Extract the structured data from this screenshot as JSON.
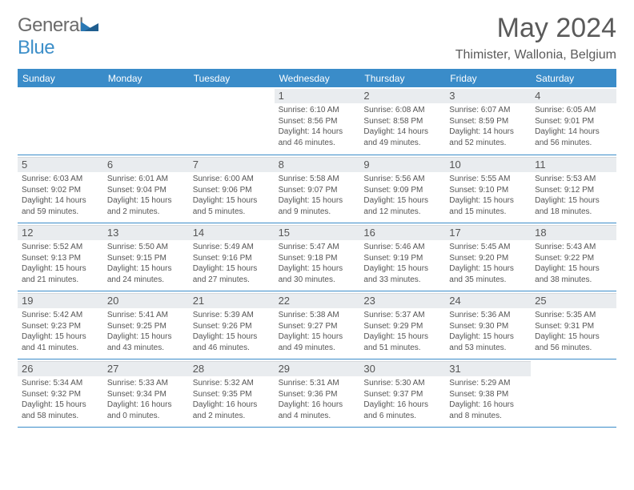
{
  "logo": {
    "part1": "General",
    "part2": "Blue"
  },
  "title": "May 2024",
  "subtitle": "Thimister, Wallonia, Belgium",
  "weekdays": [
    "Sunday",
    "Monday",
    "Tuesday",
    "Wednesday",
    "Thursday",
    "Friday",
    "Saturday"
  ],
  "colors": {
    "brand_blue": "#3a8cc9",
    "header_gray": "#e9ecef",
    "text": "#555555",
    "bg": "#ffffff"
  },
  "weeks": [
    [
      {
        "n": "",
        "rise": "",
        "set": "",
        "dl": ""
      },
      {
        "n": "",
        "rise": "",
        "set": "",
        "dl": ""
      },
      {
        "n": "",
        "rise": "",
        "set": "",
        "dl": ""
      },
      {
        "n": "1",
        "rise": "Sunrise: 6:10 AM",
        "set": "Sunset: 8:56 PM",
        "dl": "Daylight: 14 hours and 46 minutes."
      },
      {
        "n": "2",
        "rise": "Sunrise: 6:08 AM",
        "set": "Sunset: 8:58 PM",
        "dl": "Daylight: 14 hours and 49 minutes."
      },
      {
        "n": "3",
        "rise": "Sunrise: 6:07 AM",
        "set": "Sunset: 8:59 PM",
        "dl": "Daylight: 14 hours and 52 minutes."
      },
      {
        "n": "4",
        "rise": "Sunrise: 6:05 AM",
        "set": "Sunset: 9:01 PM",
        "dl": "Daylight: 14 hours and 56 minutes."
      }
    ],
    [
      {
        "n": "5",
        "rise": "Sunrise: 6:03 AM",
        "set": "Sunset: 9:02 PM",
        "dl": "Daylight: 14 hours and 59 minutes."
      },
      {
        "n": "6",
        "rise": "Sunrise: 6:01 AM",
        "set": "Sunset: 9:04 PM",
        "dl": "Daylight: 15 hours and 2 minutes."
      },
      {
        "n": "7",
        "rise": "Sunrise: 6:00 AM",
        "set": "Sunset: 9:06 PM",
        "dl": "Daylight: 15 hours and 5 minutes."
      },
      {
        "n": "8",
        "rise": "Sunrise: 5:58 AM",
        "set": "Sunset: 9:07 PM",
        "dl": "Daylight: 15 hours and 9 minutes."
      },
      {
        "n": "9",
        "rise": "Sunrise: 5:56 AM",
        "set": "Sunset: 9:09 PM",
        "dl": "Daylight: 15 hours and 12 minutes."
      },
      {
        "n": "10",
        "rise": "Sunrise: 5:55 AM",
        "set": "Sunset: 9:10 PM",
        "dl": "Daylight: 15 hours and 15 minutes."
      },
      {
        "n": "11",
        "rise": "Sunrise: 5:53 AM",
        "set": "Sunset: 9:12 PM",
        "dl": "Daylight: 15 hours and 18 minutes."
      }
    ],
    [
      {
        "n": "12",
        "rise": "Sunrise: 5:52 AM",
        "set": "Sunset: 9:13 PM",
        "dl": "Daylight: 15 hours and 21 minutes."
      },
      {
        "n": "13",
        "rise": "Sunrise: 5:50 AM",
        "set": "Sunset: 9:15 PM",
        "dl": "Daylight: 15 hours and 24 minutes."
      },
      {
        "n": "14",
        "rise": "Sunrise: 5:49 AM",
        "set": "Sunset: 9:16 PM",
        "dl": "Daylight: 15 hours and 27 minutes."
      },
      {
        "n": "15",
        "rise": "Sunrise: 5:47 AM",
        "set": "Sunset: 9:18 PM",
        "dl": "Daylight: 15 hours and 30 minutes."
      },
      {
        "n": "16",
        "rise": "Sunrise: 5:46 AM",
        "set": "Sunset: 9:19 PM",
        "dl": "Daylight: 15 hours and 33 minutes."
      },
      {
        "n": "17",
        "rise": "Sunrise: 5:45 AM",
        "set": "Sunset: 9:20 PM",
        "dl": "Daylight: 15 hours and 35 minutes."
      },
      {
        "n": "18",
        "rise": "Sunrise: 5:43 AM",
        "set": "Sunset: 9:22 PM",
        "dl": "Daylight: 15 hours and 38 minutes."
      }
    ],
    [
      {
        "n": "19",
        "rise": "Sunrise: 5:42 AM",
        "set": "Sunset: 9:23 PM",
        "dl": "Daylight: 15 hours and 41 minutes."
      },
      {
        "n": "20",
        "rise": "Sunrise: 5:41 AM",
        "set": "Sunset: 9:25 PM",
        "dl": "Daylight: 15 hours and 43 minutes."
      },
      {
        "n": "21",
        "rise": "Sunrise: 5:39 AM",
        "set": "Sunset: 9:26 PM",
        "dl": "Daylight: 15 hours and 46 minutes."
      },
      {
        "n": "22",
        "rise": "Sunrise: 5:38 AM",
        "set": "Sunset: 9:27 PM",
        "dl": "Daylight: 15 hours and 49 minutes."
      },
      {
        "n": "23",
        "rise": "Sunrise: 5:37 AM",
        "set": "Sunset: 9:29 PM",
        "dl": "Daylight: 15 hours and 51 minutes."
      },
      {
        "n": "24",
        "rise": "Sunrise: 5:36 AM",
        "set": "Sunset: 9:30 PM",
        "dl": "Daylight: 15 hours and 53 minutes."
      },
      {
        "n": "25",
        "rise": "Sunrise: 5:35 AM",
        "set": "Sunset: 9:31 PM",
        "dl": "Daylight: 15 hours and 56 minutes."
      }
    ],
    [
      {
        "n": "26",
        "rise": "Sunrise: 5:34 AM",
        "set": "Sunset: 9:32 PM",
        "dl": "Daylight: 15 hours and 58 minutes."
      },
      {
        "n": "27",
        "rise": "Sunrise: 5:33 AM",
        "set": "Sunset: 9:34 PM",
        "dl": "Daylight: 16 hours and 0 minutes."
      },
      {
        "n": "28",
        "rise": "Sunrise: 5:32 AM",
        "set": "Sunset: 9:35 PM",
        "dl": "Daylight: 16 hours and 2 minutes."
      },
      {
        "n": "29",
        "rise": "Sunrise: 5:31 AM",
        "set": "Sunset: 9:36 PM",
        "dl": "Daylight: 16 hours and 4 minutes."
      },
      {
        "n": "30",
        "rise": "Sunrise: 5:30 AM",
        "set": "Sunset: 9:37 PM",
        "dl": "Daylight: 16 hours and 6 minutes."
      },
      {
        "n": "31",
        "rise": "Sunrise: 5:29 AM",
        "set": "Sunset: 9:38 PM",
        "dl": "Daylight: 16 hours and 8 minutes."
      },
      {
        "n": "",
        "rise": "",
        "set": "",
        "dl": ""
      }
    ]
  ]
}
